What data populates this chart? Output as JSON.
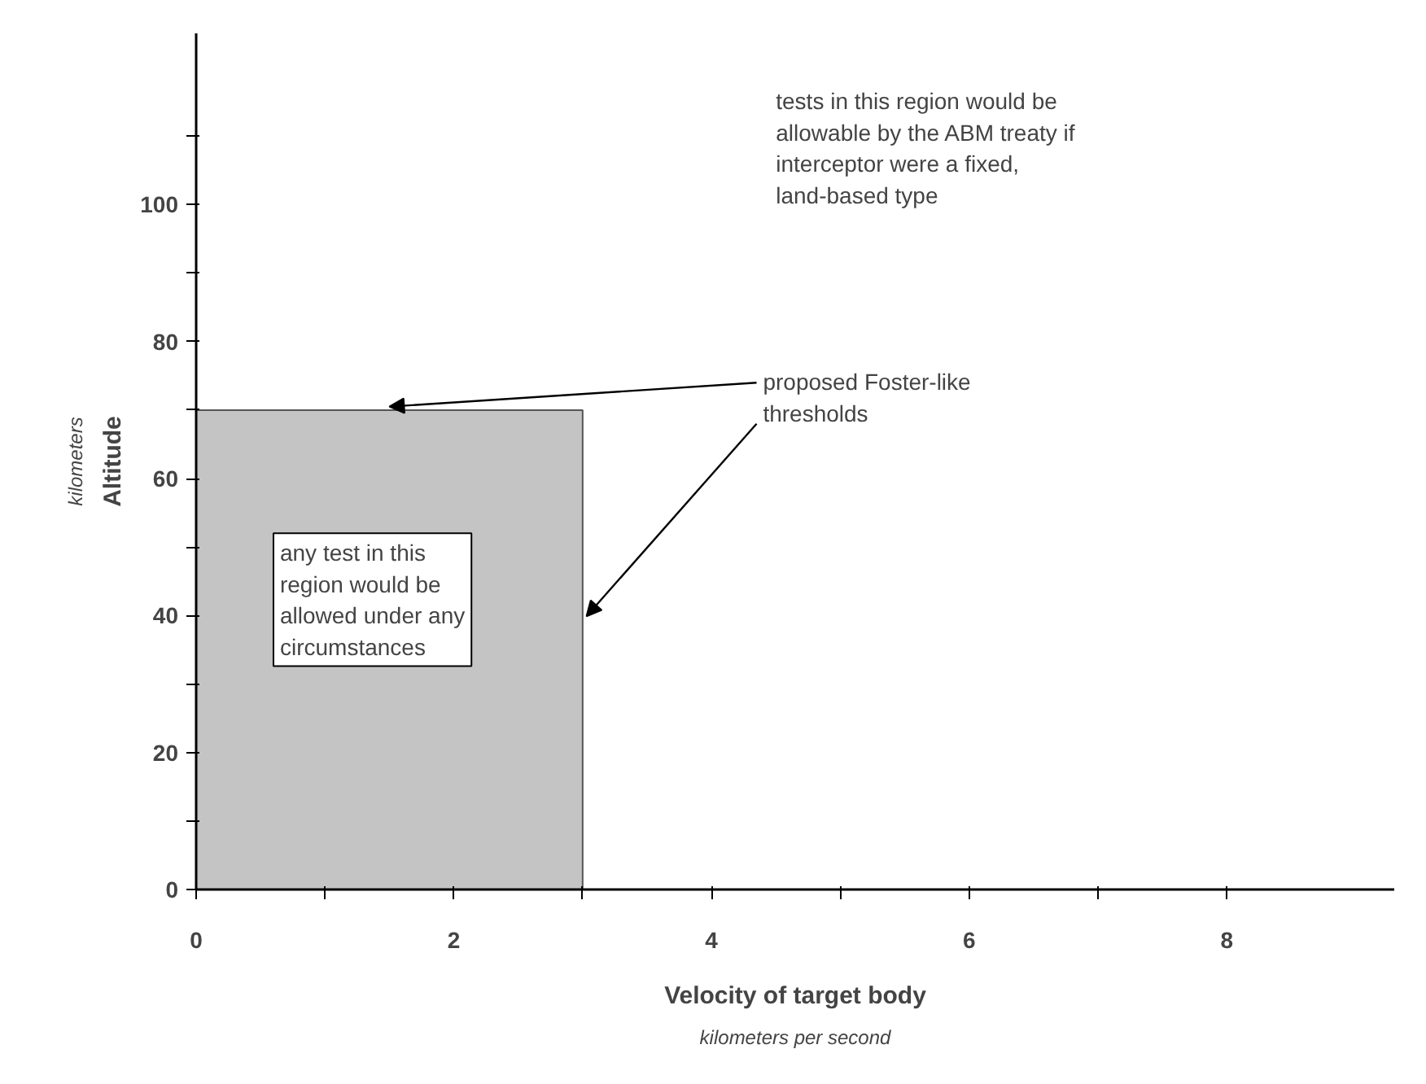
{
  "chart_data": {
    "type": "area",
    "xlabel": "Velocity of target body",
    "ylabel": "Altitude",
    "x": [
      0,
      3
    ],
    "series": [
      {
        "color": "#c4c4c4",
        "values": [
          70,
          70
        ]
      }
    ],
    "xlim": [
      0,
      9.3
    ],
    "ylim": [
      0,
      125
    ],
    "xticks": [
      0,
      {
        "value": 1,
        "label": null
      },
      2,
      {
        "value": 3,
        "label": null
      },
      4,
      {
        "value": 5,
        "label": null
      },
      6,
      {
        "value": 7,
        "label": null
      },
      8
    ],
    "yticks": [
      0,
      {
        "value": 10,
        "label": null
      },
      20,
      {
        "value": 30,
        "label": null
      },
      40,
      {
        "value": 50,
        "label": null
      },
      60,
      {
        "value": 70,
        "label": null
      },
      80,
      {
        "value": 90,
        "label": null
      },
      100,
      {
        "value": 110,
        "label": null
      }
    ],
    "grid": false,
    "annotations": [
      "tests in this region would be allowable by the ABM treaty if interceptor were a fixed, land-based type",
      {
        "text": "proposed Foster-like thresholds",
        "x": 1.5,
        "y": 70
      },
      "any test in this region would be allowed under any circumstances",
      "kilometers per second",
      "kilometers"
    ]
  }
}
